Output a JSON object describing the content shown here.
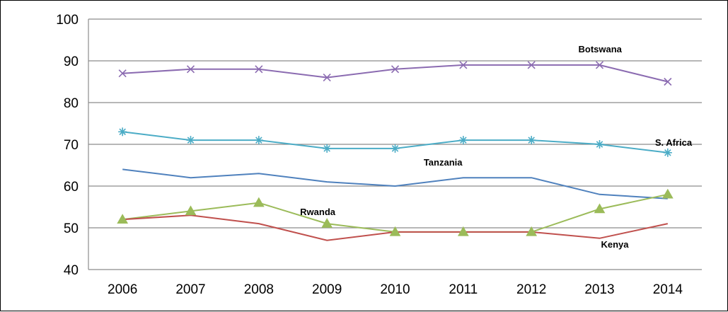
{
  "chart_data": {
    "type": "line",
    "title": "",
    "xlabel": "",
    "ylabel": "",
    "x": [
      "2006",
      "2007",
      "2008",
      "2009",
      "2010",
      "2011",
      "2012",
      "2013",
      "2014"
    ],
    "ylim": [
      40,
      100
    ],
    "yticks": [
      40,
      50,
      60,
      70,
      80,
      90,
      100
    ],
    "grid": true,
    "legend": "inline",
    "series": [
      {
        "name": "Botswana",
        "marker": "x",
        "color": "#8b6bb1",
        "values": [
          87,
          88,
          88,
          86,
          88,
          89,
          89,
          89,
          85
        ],
        "label_at": 7
      },
      {
        "name": "S. Africa",
        "marker": "star",
        "color": "#4bacc6",
        "values": [
          73,
          71,
          71,
          69,
          69,
          71,
          71,
          70,
          68
        ],
        "label_at": 8
      },
      {
        "name": "Tanzania",
        "marker": "none",
        "color": "#4f81bd",
        "values": [
          64,
          62,
          63,
          61,
          60,
          62,
          62,
          58,
          57
        ],
        "label_at": 5
      },
      {
        "name": "Rwanda",
        "marker": "triangle",
        "color": "#9bbb59",
        "values": [
          52,
          54,
          56,
          51,
          49,
          49,
          49,
          54.5,
          58
        ],
        "label_at": 3
      },
      {
        "name": "Kenya",
        "marker": "none",
        "color": "#c0504d",
        "values": [
          52,
          53,
          51,
          47,
          49,
          49,
          49,
          47.5,
          51
        ],
        "label_at": 7
      }
    ]
  }
}
